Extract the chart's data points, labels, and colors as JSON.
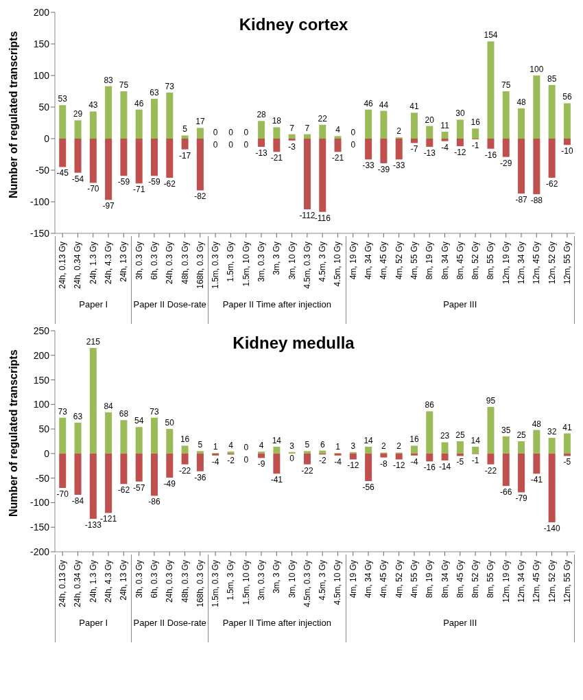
{
  "chart_data": [
    {
      "type": "bar",
      "title": "Kidney cortex",
      "ylabel": "Number of regulated transcripts",
      "stacked": true,
      "data_labels": true,
      "legend": false,
      "grid": false,
      "ylim": [
        -150,
        200
      ],
      "yticks": [
        -150,
        -100,
        -50,
        0,
        50,
        100,
        150,
        200
      ],
      "categories": [
        "24h, 0.13 Gy",
        "24h, 0.34 Gy",
        "24h, 1.3 Gy",
        "24h, 4.3 Gy",
        "24h, 13 Gy",
        "3h, 0.3 Gy",
        "6h, 0.3 Gy",
        "24h, 0.3 Gy",
        "48h, 0.3 Gy",
        "168h, 0.3 Gy",
        "1.5m, 0.3 Gy",
        "1.5m, 3 Gy",
        "1.5m, 10 Gy",
        "3m, 0.3 Gy",
        "3m, 3 Gy",
        "3m, 10 Gy",
        "4.5m, 0.3 Gy",
        "4.5m, 3 Gy",
        "4.5m, 10 Gy",
        "4m, 19 Gy",
        "4m, 34 Gy",
        "4m, 45 Gy",
        "4m, 52 Gy",
        "4m, 55 Gy",
        "8m, 19 Gy",
        "8m, 34 Gy",
        "8m, 45 Gy",
        "8m, 52 Gy",
        "8m, 55 Gy",
        "12m, 19 Gy",
        "12m, 34 Gy",
        "12m, 45 Gy",
        "12m, 52 Gy",
        "12m, 55 Gy"
      ],
      "series": [
        {
          "color": "#9bbb59",
          "values": [
            53,
            29,
            43,
            83,
            75,
            46,
            63,
            73,
            5,
            17,
            0,
            0,
            0,
            28,
            18,
            7,
            7,
            22,
            4,
            0,
            46,
            44,
            2,
            41,
            20,
            11,
            30,
            16,
            154,
            75,
            48,
            100,
            85,
            56
          ]
        },
        {
          "color": "#c0504d",
          "values": [
            -45,
            -54,
            -70,
            -97,
            -59,
            -71,
            -59,
            -62,
            -17,
            -82,
            0,
            0,
            0,
            -13,
            -21,
            -3,
            -112,
            -116,
            -21,
            0,
            -33,
            -39,
            -33,
            -7,
            -13,
            -4,
            -12,
            -1,
            -16,
            -29,
            -87,
            -88,
            -62,
            -10
          ]
        }
      ],
      "annotations": [
        "Paper I",
        "Paper II Dose-rate",
        "Paper II Time after injection",
        "Paper III"
      ]
    },
    {
      "type": "bar",
      "title": "Kidney medulla",
      "ylabel": "Number of regulated transcripts",
      "stacked": true,
      "data_labels": true,
      "legend": false,
      "grid": false,
      "ylim": [
        -200,
        250
      ],
      "yticks": [
        -200,
        -150,
        -100,
        -50,
        0,
        50,
        100,
        150,
        200,
        250
      ],
      "categories": [
        "24h, 0.13 Gy",
        "24h, 0.34 Gy",
        "24h, 1.3 Gy",
        "24h, 4.3 Gy",
        "24h, 13 Gy",
        "3h, 0.3 Gy",
        "6h, 0.3 Gy",
        "24h, 0.3 Gy",
        "48h, 0.3 Gy",
        "168h, 0.3 Gy",
        "1.5m, 0.3 Gy",
        "1.5m, 3 Gy",
        "1.5m, 10 Gy",
        "3m, 0.3 Gy",
        "3m, 3 Gy",
        "3m, 10 Gy",
        "4.5m, 0.3 Gy",
        "4.5m, 3 Gy",
        "4.5m, 10 Gy",
        "4m, 19 Gy",
        "4m, 34 Gy",
        "4m, 45 Gy",
        "4m, 52 Gy",
        "4m, 55 Gy",
        "8m, 19 Gy",
        "8m, 34 Gy",
        "8m, 45 Gy",
        "8m, 52 Gy",
        "8m, 55 Gy",
        "12m, 19 Gy",
        "12m, 34 Gy",
        "12m, 45 Gy",
        "12m, 52 Gy",
        "12m, 55 Gy"
      ],
      "series": [
        {
          "color": "#9bbb59",
          "values": [
            73,
            63,
            215,
            84,
            68,
            54,
            73,
            50,
            16,
            5,
            1,
            4,
            0,
            4,
            14,
            3,
            5,
            6,
            1,
            3,
            14,
            2,
            2,
            16,
            86,
            23,
            25,
            14,
            95,
            35,
            25,
            48,
            32,
            41
          ]
        },
        {
          "color": "#c0504d",
          "values": [
            -70,
            -84,
            -133,
            -121,
            -62,
            -57,
            -86,
            -49,
            -22,
            -36,
            -4,
            -2,
            0,
            -9,
            -41,
            0,
            -22,
            -2,
            -4,
            -12,
            -56,
            -8,
            -12,
            -4,
            -16,
            -14,
            -5,
            -1,
            -22,
            -66,
            -79,
            -41,
            -140,
            -5
          ]
        }
      ],
      "annotations": [
        "Paper I",
        "Paper II Dose-rate",
        "Paper II Time after injection",
        "Paper III"
      ]
    }
  ]
}
